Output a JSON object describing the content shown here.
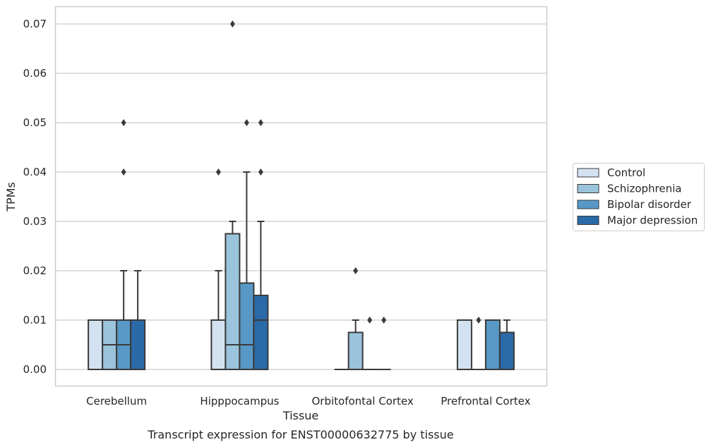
{
  "chart_data": {
    "type": "box",
    "title": "",
    "caption": "Transcript expression for ENST00000632775 by tissue",
    "xlabel": "Tissue",
    "ylabel": "TPMs",
    "ylim": [
      -0.0034,
      0.0736
    ],
    "yticks": [
      "0.00",
      "0.01",
      "0.02",
      "0.03",
      "0.04",
      "0.05",
      "0.06",
      "0.07"
    ],
    "grid": "horizontal",
    "legend_position": "right",
    "categories": [
      "Cerebellum",
      "Hipppocampus",
      "Orbitofontal Cortex",
      "Prefrontal Cortex"
    ],
    "series": [
      {
        "name": "Control",
        "color": "#d3e2f1",
        "boxes": [
          {
            "q1": 0.0,
            "median": 0.0,
            "q3": 0.01,
            "wlo": 0.0,
            "whi": 0.01,
            "outliers": []
          },
          {
            "q1": 0.0,
            "median": 0.0,
            "q3": 0.01,
            "wlo": 0.0,
            "whi": 0.02,
            "outliers": [
              0.04
            ]
          },
          {
            "q1": 0.0,
            "median": 0.0,
            "q3": 0.0,
            "wlo": 0.0,
            "whi": 0.0,
            "outliers": []
          },
          {
            "q1": 0.0,
            "median": 0.0,
            "q3": 0.01,
            "wlo": 0.0,
            "whi": 0.01,
            "outliers": []
          }
        ]
      },
      {
        "name": "Schizophrenia",
        "color": "#9ac3dc",
        "boxes": [
          {
            "q1": 0.0,
            "median": 0.005,
            "q3": 0.01,
            "wlo": 0.0,
            "whi": 0.01,
            "outliers": []
          },
          {
            "q1": 0.0,
            "median": 0.005,
            "q3": 0.0275,
            "wlo": 0.0,
            "whi": 0.03,
            "outliers": [
              0.07
            ]
          },
          {
            "q1": 0.0,
            "median": 0.0,
            "q3": 0.0075,
            "wlo": 0.0,
            "whi": 0.01,
            "outliers": [
              0.02
            ]
          },
          {
            "q1": 0.0,
            "median": 0.0,
            "q3": 0.0,
            "wlo": 0.0,
            "whi": 0.0,
            "outliers": [
              0.01
            ]
          }
        ]
      },
      {
        "name": "Bipolar disorder",
        "color": "#5798c6",
        "boxes": [
          {
            "q1": 0.0,
            "median": 0.005,
            "q3": 0.01,
            "wlo": 0.0,
            "whi": 0.02,
            "outliers": [
              0.04,
              0.05
            ]
          },
          {
            "q1": 0.0,
            "median": 0.005,
            "q3": 0.0175,
            "wlo": 0.0,
            "whi": 0.04,
            "outliers": [
              0.05
            ]
          },
          {
            "q1": 0.0,
            "median": 0.0,
            "q3": 0.0,
            "wlo": 0.0,
            "whi": 0.0,
            "outliers": [
              0.01
            ]
          },
          {
            "q1": 0.0,
            "median": 0.0,
            "q3": 0.01,
            "wlo": 0.0,
            "whi": 0.01,
            "outliers": []
          }
        ]
      },
      {
        "name": "Major depression",
        "color": "#2b6aa8",
        "boxes": [
          {
            "q1": 0.0,
            "median": 0.0,
            "q3": 0.01,
            "wlo": 0.0,
            "whi": 0.02,
            "outliers": []
          },
          {
            "q1": 0.0,
            "median": 0.01,
            "q3": 0.015,
            "wlo": 0.0,
            "whi": 0.03,
            "outliers": [
              0.04,
              0.05
            ]
          },
          {
            "q1": 0.0,
            "median": 0.0,
            "q3": 0.0,
            "wlo": 0.0,
            "whi": 0.0,
            "outliers": [
              0.01
            ]
          },
          {
            "q1": 0.0,
            "median": 0.0,
            "q3": 0.0075,
            "wlo": 0.0,
            "whi": 0.01,
            "outliers": []
          }
        ]
      }
    ]
  }
}
